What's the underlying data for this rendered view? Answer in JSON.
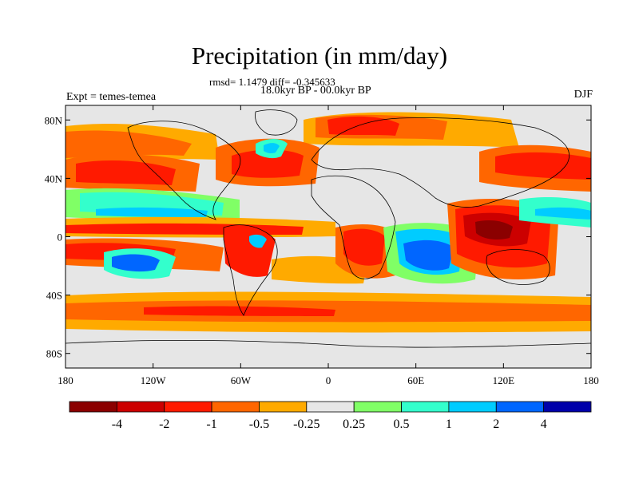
{
  "title": "Precipitation (in mm/day)",
  "stats": "rmsd= 1.1479 diff= -0.345633",
  "subtitle": "18.0kyr BP - 00.0kyr BP",
  "experiment": "Expt = temes-temea",
  "season": "DJF",
  "map": {
    "lon_range": [
      -180,
      180
    ],
    "lat_range": [
      -90,
      90
    ],
    "lat_ticks": [
      {
        "value": 80,
        "label": "80N"
      },
      {
        "value": 40,
        "label": "40N"
      },
      {
        "value": 0,
        "label": "0"
      },
      {
        "value": -40,
        "label": "40S"
      },
      {
        "value": -80,
        "label": "80S"
      }
    ],
    "lon_ticks": [
      {
        "value": -180,
        "label": "180"
      },
      {
        "value": -120,
        "label": "120W"
      },
      {
        "value": -60,
        "label": "60W"
      },
      {
        "value": 0,
        "label": "0"
      },
      {
        "value": 60,
        "label": "60E"
      },
      {
        "value": 120,
        "label": "120E"
      },
      {
        "value": 180,
        "label": "180"
      }
    ],
    "background_color": "#e6e6e6"
  },
  "colorbar": {
    "colors": [
      "#8b0000",
      "#cc0000",
      "#ff1a00",
      "#ff6600",
      "#ffaa00",
      "#e6e6e6",
      "#80ff66",
      "#33ffcc",
      "#00ccff",
      "#0066ff",
      "#0000aa"
    ],
    "labels": [
      "-4",
      "-2",
      "-1",
      "-0.5",
      "-0.25",
      "0.25",
      "0.5",
      "1",
      "2",
      "4"
    ]
  }
}
